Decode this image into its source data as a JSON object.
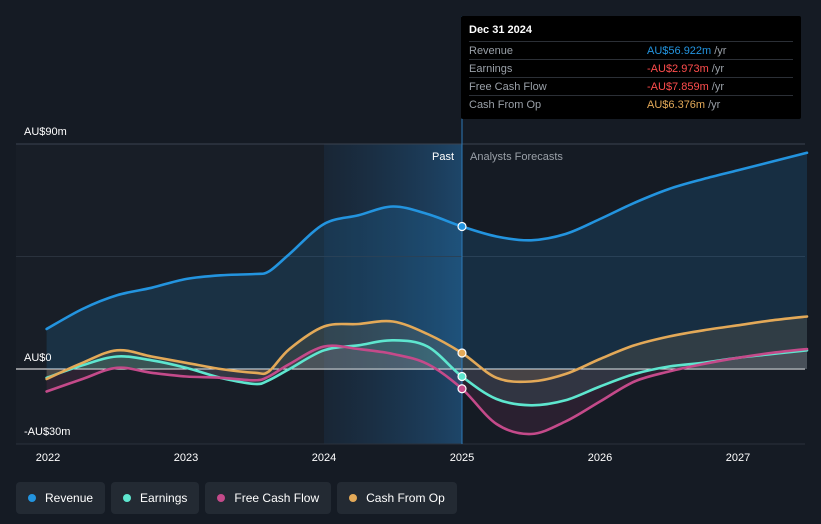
{
  "chart_data": {
    "type": "area",
    "title": "",
    "xlabel": "",
    "ylabel": "",
    "x_ticks": [
      2022,
      2023,
      2024,
      2025,
      2026,
      2027
    ],
    "x_tick_labels": [
      "2022",
      "2023",
      "2024",
      "2025",
      "2026",
      "2027"
    ],
    "y_labels": [
      "AU$90m",
      "AU$0",
      "-AU$30m"
    ],
    "ylim": [
      -30,
      90
    ],
    "xlim": [
      2022,
      2027.5
    ],
    "divider_x": 2025,
    "highlight_range": [
      2024,
      2025
    ],
    "past_label": "Past",
    "forecast_label": "Analysts Forecasts",
    "series": [
      {
        "name": "Revenue",
        "color": "#2394df",
        "fill": true,
        "points": [
          [
            2021.99,
            16
          ],
          [
            2022.25,
            24
          ],
          [
            2022.5,
            29.5
          ],
          [
            2022.75,
            32.5
          ],
          [
            2023,
            36
          ],
          [
            2023.25,
            37.5
          ],
          [
            2023.5,
            38
          ],
          [
            2023.6,
            39
          ],
          [
            2023.75,
            46
          ],
          [
            2024,
            58
          ],
          [
            2024.25,
            61.5
          ],
          [
            2024.5,
            65
          ],
          [
            2024.75,
            62
          ],
          [
            2025,
            57
          ],
          [
            2025.25,
            53
          ],
          [
            2025.5,
            51.5
          ],
          [
            2025.75,
            54
          ],
          [
            2026,
            60
          ],
          [
            2026.25,
            66.5
          ],
          [
            2026.5,
            72
          ],
          [
            2026.75,
            76
          ],
          [
            2027,
            79.5
          ],
          [
            2027.25,
            83
          ],
          [
            2027.5,
            86.5
          ]
        ],
        "marker": [
          2025,
          57
        ]
      },
      {
        "name": "Earnings",
        "color": "#5ee6cf",
        "fill": true,
        "points": [
          [
            2021.99,
            -3.5
          ],
          [
            2022.25,
            1.5
          ],
          [
            2022.5,
            5
          ],
          [
            2022.75,
            3.5
          ],
          [
            2023,
            0.5
          ],
          [
            2023.25,
            -3.5
          ],
          [
            2023.5,
            -6
          ],
          [
            2023.6,
            -4.5
          ],
          [
            2023.75,
            0
          ],
          [
            2024,
            7.5
          ],
          [
            2024.25,
            9.5
          ],
          [
            2024.5,
            11.5
          ],
          [
            2024.75,
            9
          ],
          [
            2025,
            -3
          ],
          [
            2025.25,
            -12
          ],
          [
            2025.5,
            -14.5
          ],
          [
            2025.75,
            -12.5
          ],
          [
            2026,
            -7
          ],
          [
            2026.25,
            -2
          ],
          [
            2026.5,
            1
          ],
          [
            2026.75,
            2.5
          ],
          [
            2027,
            4.5
          ],
          [
            2027.25,
            6
          ],
          [
            2027.5,
            7.5
          ]
        ],
        "marker": [
          2025,
          -3
        ]
      },
      {
        "name": "Free Cash Flow",
        "color": "#c44a8a",
        "fill": true,
        "points": [
          [
            2021.99,
            -9
          ],
          [
            2022.25,
            -4
          ],
          [
            2022.5,
            0.5
          ],
          [
            2022.75,
            -1.5
          ],
          [
            2023,
            -3
          ],
          [
            2023.25,
            -3.5
          ],
          [
            2023.5,
            -4.5
          ],
          [
            2023.6,
            -3
          ],
          [
            2023.75,
            2
          ],
          [
            2024,
            9
          ],
          [
            2024.25,
            8
          ],
          [
            2024.5,
            6
          ],
          [
            2024.75,
            2
          ],
          [
            2025,
            -7.9
          ],
          [
            2025.25,
            -22
          ],
          [
            2025.5,
            -26
          ],
          [
            2025.75,
            -21
          ],
          [
            2026,
            -13
          ],
          [
            2026.25,
            -5
          ],
          [
            2026.5,
            -1
          ],
          [
            2026.75,
            2
          ],
          [
            2027,
            4.5
          ],
          [
            2027.25,
            6.5
          ],
          [
            2027.5,
            8
          ]
        ],
        "marker": [
          2025,
          -7.9
        ]
      },
      {
        "name": "Cash From Op",
        "color": "#e3a958",
        "fill": true,
        "points": [
          [
            2021.99,
            -4
          ],
          [
            2022.25,
            2.5
          ],
          [
            2022.5,
            7.5
          ],
          [
            2022.75,
            5
          ],
          [
            2023,
            2.5
          ],
          [
            2023.25,
            0
          ],
          [
            2023.5,
            -1.5
          ],
          [
            2023.6,
            -1
          ],
          [
            2023.75,
            8
          ],
          [
            2024,
            17
          ],
          [
            2024.25,
            18
          ],
          [
            2024.5,
            19
          ],
          [
            2024.75,
            14
          ],
          [
            2025,
            6.4
          ],
          [
            2025.25,
            -3.5
          ],
          [
            2025.5,
            -5
          ],
          [
            2025.75,
            -2
          ],
          [
            2026,
            4
          ],
          [
            2026.25,
            9.5
          ],
          [
            2026.5,
            13
          ],
          [
            2026.75,
            15.5
          ],
          [
            2027,
            17.5
          ],
          [
            2027.25,
            19.5
          ],
          [
            2027.5,
            21
          ]
        ],
        "marker": [
          2025,
          6.4
        ]
      }
    ]
  },
  "tooltip": {
    "date": "Dec 31 2024",
    "rows": [
      {
        "label": "Revenue",
        "value": "AU$56.922m",
        "unit": "/yr",
        "color": "#2394df"
      },
      {
        "label": "Earnings",
        "value": "-AU$2.973m",
        "unit": "/yr",
        "color": "#ff4d4d"
      },
      {
        "label": "Free Cash Flow",
        "value": "-AU$7.859m",
        "unit": "/yr",
        "color": "#ff4d4d"
      },
      {
        "label": "Cash From Op",
        "value": "AU$6.376m",
        "unit": "/yr",
        "color": "#e3a958"
      }
    ]
  },
  "legend": [
    {
      "label": "Revenue",
      "color": "#2394df"
    },
    {
      "label": "Earnings",
      "color": "#5ee6cf"
    },
    {
      "label": "Free Cash Flow",
      "color": "#c44a8a"
    },
    {
      "label": "Cash From Op",
      "color": "#e3a958"
    }
  ]
}
